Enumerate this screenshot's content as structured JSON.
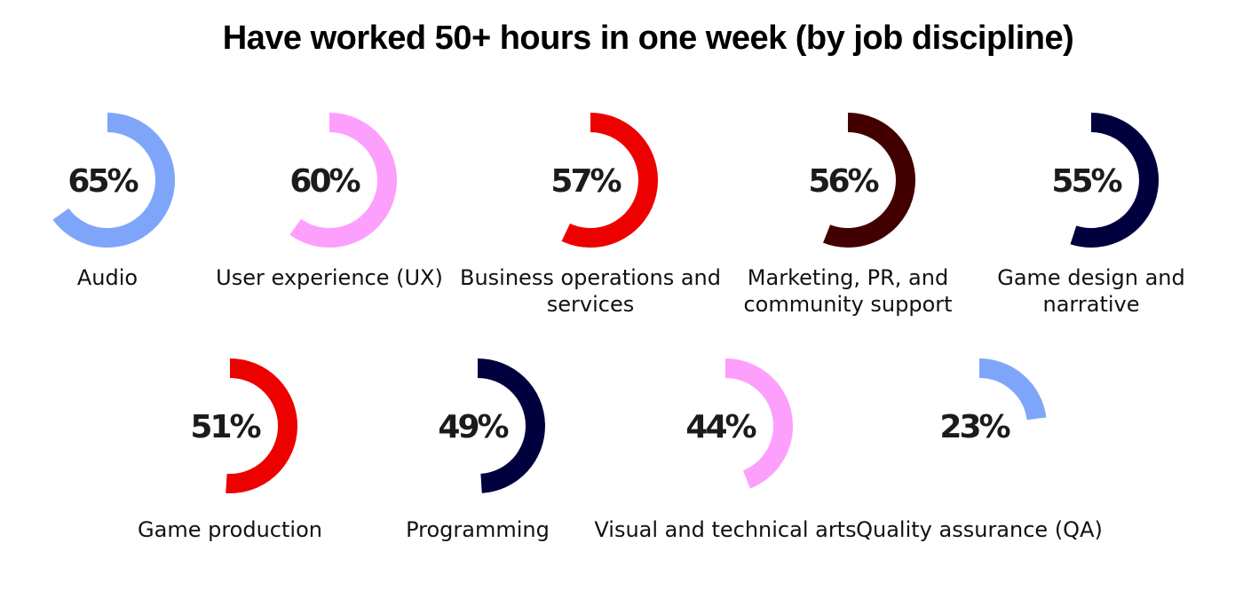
{
  "chart_data": {
    "type": "pie",
    "title": "Have worked 50+ hours in one week (by job discipline)",
    "categories": [
      "Audio",
      "User experience (UX)",
      "Business operations and services",
      "Marketing, PR, and community support",
      "Game design and narrative",
      "Game production",
      "Programming",
      "Visual and technical arts",
      "Quality assurance (QA)"
    ],
    "values": [
      65,
      60,
      57,
      56,
      55,
      51,
      49,
      44,
      23
    ],
    "value_labels": [
      "65%",
      "60%",
      "57%",
      "56%",
      "55%",
      "51%",
      "49%",
      "44%",
      "23%"
    ],
    "colors": [
      "#7fa5fb",
      "#fd9ffd",
      "#ec0000",
      "#430000",
      "#00003f",
      "#ec0000",
      "#00003f",
      "#fd9ffd",
      "#7fa5fb"
    ],
    "unit": "%"
  }
}
